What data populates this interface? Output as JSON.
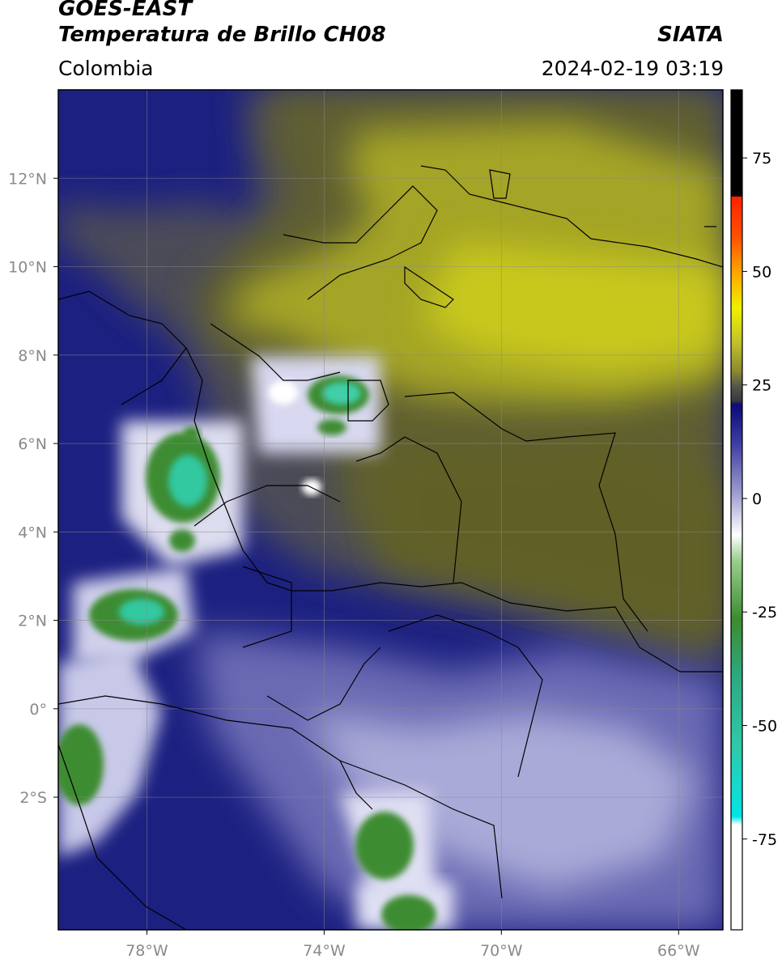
{
  "header": {
    "satellite": "GOES-EAST",
    "product": "Temperatura de Brillo CH08",
    "region": "Colombia",
    "agency": "SIATA",
    "datetime": "2024-02-19 03:19"
  },
  "map": {
    "extent": {
      "lon": [
        -80,
        -65
      ],
      "lat": [
        -5,
        14
      ]
    },
    "lat_ticks": [
      {
        "value": 12,
        "label": "12°N"
      },
      {
        "value": 10,
        "label": "10°N"
      },
      {
        "value": 8,
        "label": "8°N"
      },
      {
        "value": 6,
        "label": "6°N"
      },
      {
        "value": 4,
        "label": "4°N"
      },
      {
        "value": 2,
        "label": "2°N"
      },
      {
        "value": 0,
        "label": "0°"
      },
      {
        "value": -2,
        "label": "2°S"
      }
    ],
    "lon_ticks": [
      {
        "value": -78,
        "label": "78°W"
      },
      {
        "value": -74,
        "label": "74°W"
      },
      {
        "value": -70,
        "label": "70°W"
      },
      {
        "value": -66,
        "label": "66°W"
      }
    ],
    "gridlines": true
  },
  "colorbar": {
    "range": [
      -95,
      90
    ],
    "ticks": [
      {
        "value": 75,
        "label": "75"
      },
      {
        "value": 50,
        "label": "50"
      },
      {
        "value": 25,
        "label": "25"
      },
      {
        "value": 0,
        "label": "0"
      },
      {
        "value": -25,
        "label": "-25"
      },
      {
        "value": -50,
        "label": "-50"
      },
      {
        "value": -75,
        "label": "-75"
      }
    ],
    "colors": {
      "black": "#000000",
      "red": "#ff1e00",
      "orange": "#ff8c00",
      "yellow": "#e6e600",
      "olive": "#b8b820",
      "gray": "#606060",
      "navy": "#0a0a80",
      "lavender": "#a6a6d6",
      "white": "#ffffff",
      "green": "#3c8c30",
      "teal": "#30c8a0",
      "cyan": "#00e6e6"
    }
  }
}
